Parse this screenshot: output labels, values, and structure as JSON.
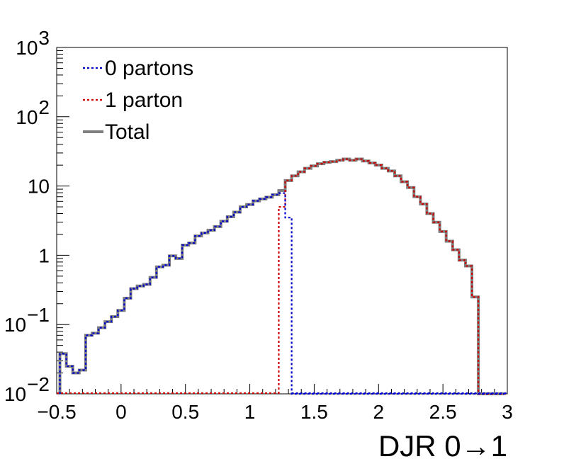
{
  "chart_data": {
    "type": "line",
    "title": "",
    "xlabel": "DJR 0→1",
    "ylabel": "",
    "xlim": [
      -0.5,
      3
    ],
    "ylim": [
      0.01,
      1000
    ],
    "yscale": "log",
    "grid": false,
    "legend_position": "top-left",
    "bin_width": 0.05,
    "x_tick_labels": [
      {
        "value": -0.5,
        "label": "−0.5"
      },
      {
        "value": 0,
        "label": "0"
      },
      {
        "value": 0.5,
        "label": "0.5"
      },
      {
        "value": 1,
        "label": "1"
      },
      {
        "value": 1.5,
        "label": "1.5"
      },
      {
        "value": 2,
        "label": "2"
      },
      {
        "value": 2.5,
        "label": "2.5"
      },
      {
        "value": 3,
        "label": "3"
      }
    ],
    "y_tick_labels": [
      {
        "value": 0.01,
        "base": "10",
        "exp": "−2"
      },
      {
        "value": 0.1,
        "base": "10",
        "exp": "−1"
      },
      {
        "value": 1,
        "base": "1",
        "exp": ""
      },
      {
        "value": 10,
        "base": "10",
        "exp": ""
      },
      {
        "value": 100,
        "base": "10",
        "exp": "2"
      },
      {
        "value": 1000,
        "base": "10",
        "exp": "3"
      }
    ],
    "series": [
      {
        "name": "0 partons",
        "color": "#0000cc",
        "style": "dotted",
        "x": [
          -0.45,
          -0.4,
          -0.35,
          -0.3,
          -0.25,
          -0.2,
          -0.15,
          -0.1,
          -0.05,
          0.0,
          0.05,
          0.1,
          0.15,
          0.2,
          0.25,
          0.3,
          0.35,
          0.4,
          0.45,
          0.5,
          0.55,
          0.6,
          0.65,
          0.7,
          0.75,
          0.8,
          0.85,
          0.9,
          0.95,
          1.0,
          1.05,
          1.1,
          1.15,
          1.2,
          1.25,
          1.3
        ],
        "values": [
          0.038,
          0.025,
          0.02,
          0.022,
          0.07,
          0.075,
          0.09,
          0.11,
          0.13,
          0.16,
          0.24,
          0.33,
          0.36,
          0.38,
          0.48,
          0.68,
          0.72,
          0.98,
          0.9,
          1.4,
          1.5,
          1.9,
          2.1,
          2.3,
          2.6,
          3.1,
          3.6,
          4.2,
          5.0,
          5.4,
          6.1,
          6.5,
          6.9,
          7.5,
          7.9,
          3.5
        ]
      },
      {
        "name": "1 parton",
        "color": "#cc0000",
        "style": "dotted",
        "x": [
          1.25,
          1.3,
          1.35,
          1.4,
          1.45,
          1.5,
          1.55,
          1.6,
          1.65,
          1.7,
          1.75,
          1.8,
          1.85,
          1.9,
          1.95,
          2.0,
          2.05,
          2.1,
          2.15,
          2.2,
          2.25,
          2.3,
          2.35,
          2.4,
          2.45,
          2.5,
          2.55,
          2.6,
          2.65,
          2.7,
          2.75,
          2.8,
          2.85,
          2.9,
          2.95
        ],
        "values": [
          5.0,
          12.0,
          14.0,
          16.0,
          18.0,
          19.5,
          21.0,
          22.0,
          22.5,
          23.5,
          24.5,
          23.5,
          24.5,
          23.0,
          21.5,
          20.0,
          18.0,
          16.5,
          14.0,
          11.5,
          9.5,
          7.0,
          5.5,
          4.0,
          3.0,
          2.2,
          1.6,
          1.2,
          0.85,
          0.7,
          0.25,
          0,
          0,
          0,
          0
        ]
      },
      {
        "name": "Total",
        "color": "#808080",
        "style": "solid",
        "x": [
          -0.45,
          -0.4,
          -0.35,
          -0.3,
          -0.25,
          -0.2,
          -0.15,
          -0.1,
          -0.05,
          0.0,
          0.05,
          0.1,
          0.15,
          0.2,
          0.25,
          0.3,
          0.35,
          0.4,
          0.45,
          0.5,
          0.55,
          0.6,
          0.65,
          0.7,
          0.75,
          0.8,
          0.85,
          0.9,
          0.95,
          1.0,
          1.05,
          1.1,
          1.15,
          1.2,
          1.25,
          1.3,
          1.35,
          1.4,
          1.45,
          1.5,
          1.55,
          1.6,
          1.65,
          1.7,
          1.75,
          1.8,
          1.85,
          1.9,
          1.95,
          2.0,
          2.05,
          2.1,
          2.15,
          2.2,
          2.25,
          2.3,
          2.35,
          2.4,
          2.45,
          2.5,
          2.55,
          2.6,
          2.65,
          2.7,
          2.75,
          2.8,
          2.85,
          2.9,
          2.95
        ],
        "values": [
          0.038,
          0.025,
          0.02,
          0.022,
          0.07,
          0.075,
          0.09,
          0.11,
          0.13,
          0.16,
          0.24,
          0.33,
          0.36,
          0.38,
          0.48,
          0.68,
          0.72,
          0.98,
          0.9,
          1.4,
          1.5,
          1.9,
          2.1,
          2.3,
          2.6,
          3.1,
          3.6,
          4.2,
          5.0,
          5.4,
          6.1,
          6.5,
          6.9,
          7.5,
          8.6,
          12.0,
          14.0,
          16.0,
          18.0,
          19.5,
          21.0,
          22.0,
          22.5,
          23.5,
          24.5,
          23.5,
          24.5,
          23.0,
          21.5,
          20.0,
          18.0,
          16.5,
          14.0,
          11.5,
          9.5,
          7.0,
          5.5,
          4.0,
          3.0,
          2.2,
          1.6,
          1.2,
          0.85,
          0.7,
          0.25,
          0,
          0,
          0,
          0
        ]
      }
    ]
  }
}
